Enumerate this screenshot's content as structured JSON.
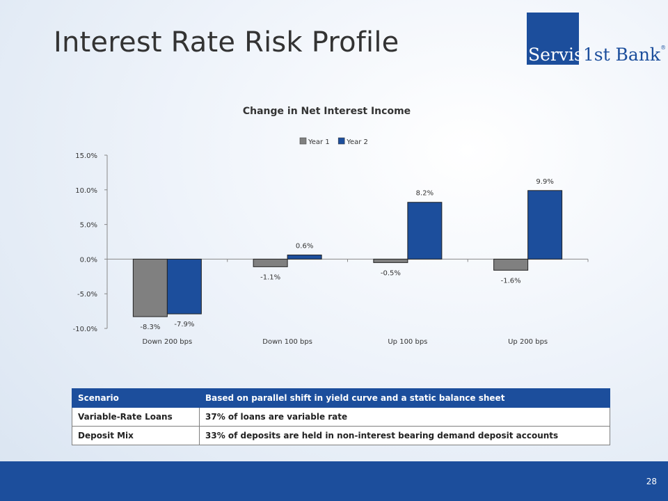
{
  "slide": {
    "title": "Interest Rate Risk Profile",
    "page_number": "28",
    "logo": {
      "part1": "Servis",
      "part2": "1st Bank",
      "mark": "®"
    }
  },
  "colors": {
    "brand_blue": "#1c4e9c",
    "year1_gray": "#808080",
    "year2_blue": "#1c4e9c"
  },
  "chart_data": {
    "type": "bar",
    "title": "Change in Net Interest Income",
    "xlabel": "",
    "ylabel": "",
    "categories": [
      "Down 200 bps",
      "Down 100 bps",
      "Up 100 bps",
      "Up 200 bps"
    ],
    "series": [
      {
        "name": "Year 1",
        "values": [
          -8.3,
          -1.1,
          -0.5,
          -1.6
        ],
        "labels": [
          "-8.3%",
          "-1.1%",
          "-0.5%",
          "-1.6%"
        ]
      },
      {
        "name": "Year 2",
        "values": [
          -7.9,
          0.6,
          8.2,
          9.9
        ],
        "labels": [
          "-7.9%",
          "0.6%",
          "8.2%",
          "9.9%"
        ]
      }
    ],
    "ylim": [
      -10,
      15
    ],
    "yticks": [
      15,
      10,
      5,
      0,
      -5,
      -10
    ],
    "ytick_labels": [
      "15.0%",
      "10.0%",
      "5.0%",
      "0.0%",
      "-5.0%",
      "-10.0%"
    ],
    "legend_position": "top",
    "grid": false
  },
  "table": {
    "header": [
      "Scenario",
      "Based on parallel shift in yield curve and a static balance sheet"
    ],
    "rows": [
      [
        "Variable-Rate Loans",
        "37% of loans are variable rate"
      ],
      [
        "Deposit Mix",
        "33% of deposits are held in non-interest bearing demand deposit accounts"
      ]
    ]
  }
}
